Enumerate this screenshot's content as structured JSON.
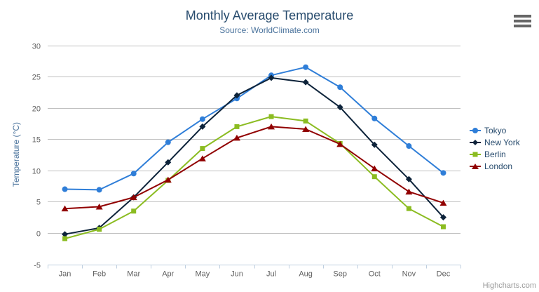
{
  "chart_data": {
    "type": "line",
    "title": "Monthly Average Temperature",
    "subtitle": "Source: WorldClimate.com",
    "xlabel": "",
    "ylabel": "Temperature (°C)",
    "ylim": [
      -5,
      30
    ],
    "yticks": [
      -5,
      0,
      5,
      10,
      15,
      20,
      25,
      30
    ],
    "grid": true,
    "legend_position": "right",
    "categories": [
      "Jan",
      "Feb",
      "Mar",
      "Apr",
      "May",
      "Jun",
      "Jul",
      "Aug",
      "Sep",
      "Oct",
      "Nov",
      "Dec"
    ],
    "series": [
      {
        "name": "Tokyo",
        "color": "#2f7ed8",
        "marker": "circle",
        "values": [
          7.0,
          6.9,
          9.5,
          14.5,
          18.2,
          21.5,
          25.2,
          26.5,
          23.3,
          18.3,
          13.9,
          9.6
        ]
      },
      {
        "name": "New York",
        "color": "#0d233a",
        "marker": "diamond",
        "values": [
          -0.2,
          0.8,
          5.7,
          11.3,
          17.0,
          22.0,
          24.8,
          24.1,
          20.1,
          14.1,
          8.6,
          2.5
        ]
      },
      {
        "name": "Berlin",
        "color": "#8bbc21",
        "marker": "square",
        "values": [
          -0.9,
          0.6,
          3.5,
          8.4,
          13.5,
          17.0,
          18.6,
          17.9,
          14.3,
          9.0,
          3.9,
          1.0
        ]
      },
      {
        "name": "London",
        "color": "#910000",
        "marker": "triangle-up",
        "values": [
          3.9,
          4.2,
          5.7,
          8.5,
          11.9,
          15.2,
          17.0,
          16.6,
          14.2,
          10.3,
          6.6,
          4.8
        ]
      }
    ]
  },
  "credit": "Highcharts.com",
  "palette": {
    "title_text": "#274b6d",
    "subtitle_text": "#4d759e",
    "axis_title_text": "#4d759e",
    "axis_label_text": "#606060",
    "legend_text": "#274b6d",
    "gridline": "#c0c0c0",
    "x_axis_line": "#c0d0e0",
    "menu_icon": "#666666",
    "credit_text": "#999999"
  }
}
